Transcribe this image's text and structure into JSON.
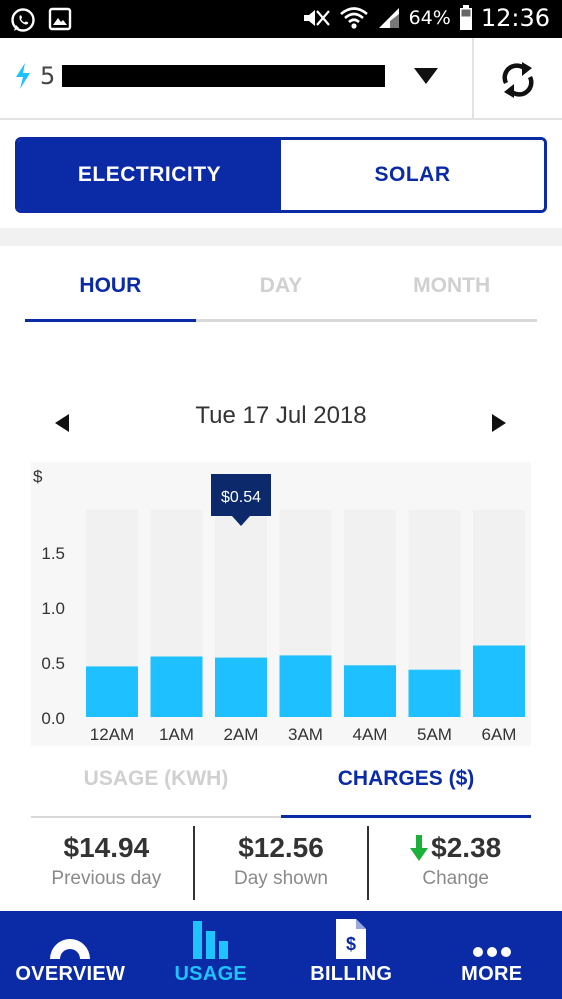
{
  "status_bar": {
    "battery_percent": "64%",
    "time": "12:36"
  },
  "account": {
    "number": "5",
    "dropdown_icon": "caret-down-icon",
    "refresh_icon": "refresh-icon"
  },
  "energy_toggle": {
    "options": [
      "ELECTRICITY",
      "SOLAR"
    ],
    "selected": "ELECTRICITY"
  },
  "period_tabs": {
    "items": [
      "HOUR",
      "DAY",
      "MONTH"
    ],
    "selected": "HOUR"
  },
  "date_nav": {
    "date": "Tue 17 Jul 2018"
  },
  "chart_data": {
    "type": "bar",
    "ylabel": "$",
    "categories": [
      "12AM",
      "1AM",
      "2AM",
      "3AM",
      "4AM",
      "5AM",
      "6AM"
    ],
    "values": [
      0.46,
      0.55,
      0.54,
      0.56,
      0.47,
      0.43,
      0.65
    ],
    "yticks": [
      "0.0",
      "0.5",
      "1.0",
      "1.5"
    ],
    "ylim": [
      0,
      1.9
    ],
    "highlighted_index": 2,
    "tooltip": "$0.54",
    "colors": {
      "bar": "#1ec0ff",
      "track": "#f1f1f1",
      "tooltip": "#0c2a6b"
    }
  },
  "measure_tabs": {
    "items": [
      "USAGE (KWH)",
      "CHARGES ($)"
    ],
    "selected": "CHARGES ($)"
  },
  "summary": [
    {
      "value": "$14.94",
      "label": "Previous day"
    },
    {
      "value": "$12.56",
      "label": "Day shown"
    },
    {
      "value": "$2.38",
      "label": "Change",
      "trend": "down",
      "trend_color": "#1bb03a"
    }
  ],
  "bottom_nav": [
    {
      "label": "OVERVIEW",
      "icon": "overview-icon"
    },
    {
      "label": "USAGE",
      "icon": "usage-bars-icon",
      "active": true
    },
    {
      "label": "BILLING",
      "icon": "bill-icon"
    },
    {
      "label": "MORE",
      "icon": "more-dots-icon"
    }
  ],
  "colors": {
    "brand": "#0a2aa6",
    "accent": "#1ec0ff"
  }
}
